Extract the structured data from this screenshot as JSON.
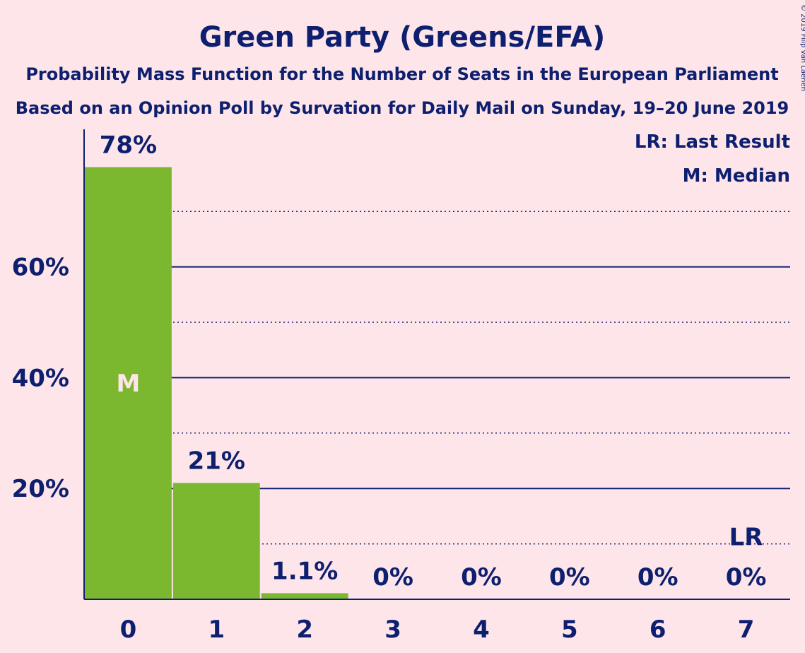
{
  "title": "Green Party (Greens/EFA)",
  "subtitle1": "Probability Mass Function for the Number of Seats in the European Parliament",
  "subtitle2": "Based on an Opinion Poll by Survation for Daily Mail on Sunday, 19–20 June 2019",
  "copyright": "© 2019 Filip van Laenen",
  "legend": {
    "last_result": "LR: Last Result",
    "median": "M: Median"
  },
  "colors": {
    "background": "#fde5ea",
    "bar": "#7cb82f",
    "text": "#0d1f6e",
    "median_label": "#fde5ea"
  },
  "chart_data": {
    "type": "bar",
    "categories": [
      "0",
      "1",
      "2",
      "3",
      "4",
      "5",
      "6",
      "7"
    ],
    "values": [
      78,
      21,
      1.1,
      0,
      0,
      0,
      0,
      0
    ],
    "value_labels": [
      "78%",
      "21%",
      "1.1%",
      "0%",
      "0%",
      "0%",
      "0%",
      "0%"
    ],
    "ylim": [
      0,
      85
    ],
    "yticks": [
      20,
      40,
      60
    ],
    "ytick_labels": [
      "20%",
      "40%",
      "60%"
    ],
    "minor_gridlines": [
      10,
      30,
      50,
      70
    ],
    "median_seat": "0",
    "median_label": "M",
    "last_result_seat": "7",
    "last_result_label": "LR",
    "xlabel": "",
    "ylabel": ""
  }
}
